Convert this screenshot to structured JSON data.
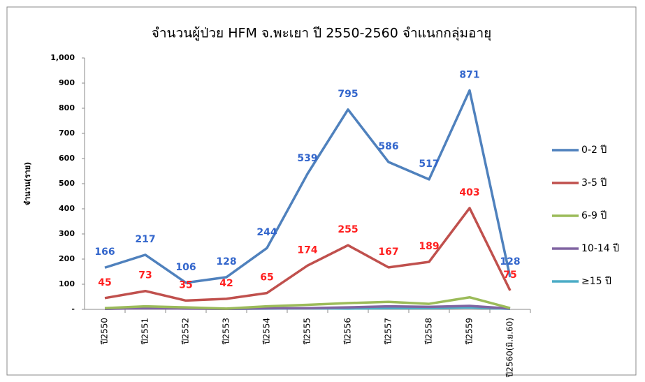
{
  "chart_data": {
    "type": "line",
    "title": "จำนวนผู้ป่วย  HFM จ.พะเยา ปี 2550-2560 จำแนกกลุ่มอายุ",
    "y_label": "จำนวน(ราย)",
    "categories": [
      "ปี2550",
      "ปี2551",
      "ปี2552",
      "ปี2553",
      "ปี2554",
      "ปี2555",
      "ปี2556",
      "ปี2557",
      "ปี2558",
      "ปี2559",
      "ปี2560(มิ.ย.60)"
    ],
    "series": [
      {
        "name": "0-2 ปี",
        "color": "#4f81bd",
        "label_color": "#3366cc",
        "data_labels": true,
        "values": [
          166,
          217,
          106,
          128,
          244,
          539,
          795,
          586,
          517,
          871,
          128
        ]
      },
      {
        "name": "3-5 ปี",
        "color": "#c0504d",
        "label_color": "#ff2020",
        "data_labels": true,
        "values": [
          45,
          73,
          35,
          42,
          65,
          174,
          255,
          167,
          189,
          403,
          75
        ]
      },
      {
        "name": "6-9 ปี",
        "color": "#9bbb59",
        "values": [
          5,
          12,
          8,
          3,
          12,
          18,
          25,
          30,
          22,
          48,
          5
        ]
      },
      {
        "name": "10-14 ปี",
        "color": "#8064a2",
        "values": [
          2,
          5,
          3,
          2,
          4,
          5,
          8,
          12,
          10,
          14,
          3
        ]
      },
      {
        "name": "≥15 ปี",
        "color": "#4bacc6",
        "values": [
          2,
          8,
          5,
          2,
          3,
          4,
          3,
          5,
          5,
          8,
          2
        ]
      }
    ],
    "ylim": [
      0,
      1000
    ],
    "yticks": [
      {
        "value": 0,
        "label": "-"
      },
      100,
      200,
      300,
      400,
      500,
      600,
      700,
      800,
      900,
      {
        "value": 1000,
        "label": "1,000"
      }
    ],
    "legend": "right"
  }
}
